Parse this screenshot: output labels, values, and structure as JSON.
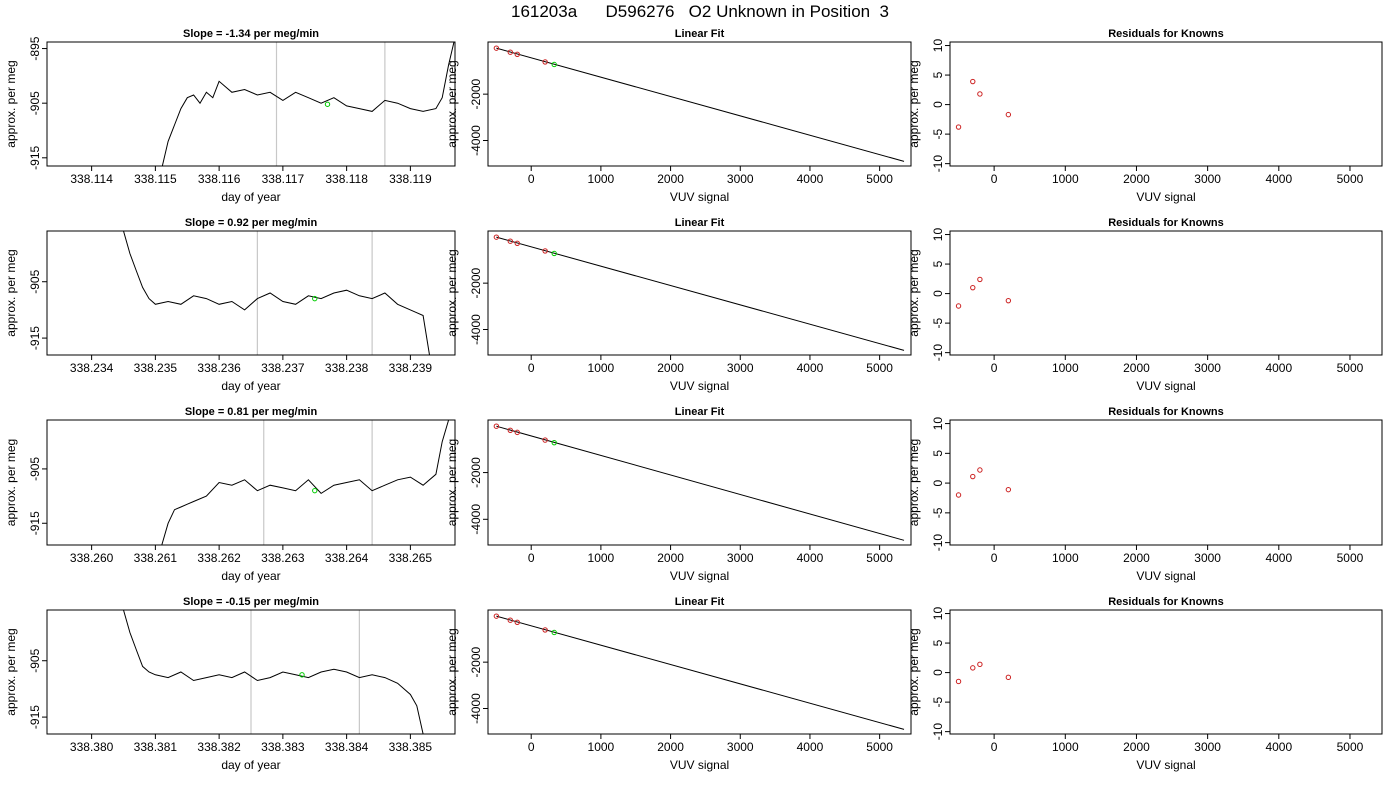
{
  "figure": {
    "title": "161203a      D596276   O2 Unknown in Position  3"
  },
  "chart_data": [
    {
      "type": "line",
      "title": "Slope =  -1.34  per meg/min",
      "xlabel": "day of year",
      "ylabel": "approx. per meg",
      "xticks": [
        "338.114",
        "338.115",
        "338.116",
        "338.117",
        "338.118",
        "338.119"
      ],
      "xlim": [
        338.1133,
        338.1197
      ],
      "yticks": [
        "-895",
        "-905",
        "-915"
      ],
      "ylim": [
        -916.5,
        -893.8
      ],
      "vlines": [
        338.1169,
        338.1186
      ],
      "highlight": {
        "x": 338.1177,
        "y": -905.2
      },
      "series": [
        {
          "x": [
            338.1151,
            338.1152,
            338.1153,
            338.1154,
            338.1155,
            338.1156,
            338.1157,
            338.1158,
            338.1159,
            338.116,
            338.1162,
            338.1164,
            338.1166,
            338.1168,
            338.117,
            338.1172,
            338.1174,
            338.1176,
            338.1178,
            338.118,
            338.1182,
            338.1184,
            338.1186,
            338.1188,
            338.119,
            338.1192,
            338.1194,
            338.1195,
            338.1196,
            338.1197
          ],
          "y": [
            -917,
            -912,
            -909,
            -906,
            -904,
            -903.5,
            -905,
            -903,
            -904,
            -901,
            -903,
            -902.5,
            -903.5,
            -903,
            -904.5,
            -903,
            -904,
            -905,
            -904,
            -905.5,
            -906,
            -906.5,
            -904.5,
            -905,
            -906,
            -906.5,
            -906,
            -904,
            -898,
            -893
          ]
        }
      ]
    },
    {
      "type": "scatter",
      "title": "Linear Fit",
      "xlabel": "VUV signal",
      "ylabel": "approx. per meg",
      "xticks": [
        "0",
        "1000",
        "2000",
        "3000",
        "4000",
        "5000"
      ],
      "xlim": [
        -620,
        5450
      ],
      "yticks": [
        "-2000",
        "-4000"
      ],
      "ylim": [
        -5100,
        250
      ],
      "fit_line": {
        "x": [
          -500,
          5350
        ],
        "y": [
          -15,
          -4900
        ]
      },
      "known_points": {
        "x": [
          -500,
          -300,
          -200,
          200
        ],
        "y": [
          -15,
          -190,
          -280,
          -610
        ]
      },
      "unknown_point": {
        "x": 330,
        "y": -720
      }
    },
    {
      "type": "scatter",
      "title": "Residuals for Knowns",
      "xlabel": "VUV signal",
      "ylabel": "approx. per meg",
      "xticks": [
        "0",
        "1000",
        "2000",
        "3000",
        "4000",
        "5000"
      ],
      "xlim": [
        -620,
        5450
      ],
      "yticks": [
        "10",
        "5",
        "0",
        "-5",
        "-10"
      ],
      "ylim": [
        -10.4,
        10.6
      ],
      "points": {
        "x": [
          -500,
          -300,
          -200,
          200
        ],
        "y": [
          -3.8,
          3.9,
          1.8,
          -1.7
        ]
      }
    },
    {
      "type": "line",
      "title": "Slope =  0.92  per meg/min",
      "xlabel": "day of year",
      "ylabel": "approx. per meg",
      "xticks": [
        "338.234",
        "338.235",
        "338.236",
        "338.237",
        "338.238",
        "338.239"
      ],
      "xlim": [
        338.2333,
        338.2397
      ],
      "yticks": [
        "-905",
        "-915"
      ],
      "ylim": [
        -918,
        -896
      ],
      "vlines": [
        338.2366,
        338.2384
      ],
      "highlight": {
        "x": 338.2375,
        "y": -908
      },
      "series": [
        {
          "x": [
            338.2345,
            338.2346,
            338.2347,
            338.2348,
            338.2349,
            338.235,
            338.2352,
            338.2354,
            338.2356,
            338.2358,
            338.236,
            338.2362,
            338.2364,
            338.2366,
            338.2368,
            338.237,
            338.2372,
            338.2374,
            338.2376,
            338.2378,
            338.238,
            338.2382,
            338.2384,
            338.2386,
            338.2388,
            338.239,
            338.2391,
            338.2392,
            338.2393
          ],
          "y": [
            -896,
            -900,
            -903,
            -906,
            -908,
            -909,
            -908.5,
            -909,
            -907.5,
            -908,
            -909,
            -908.5,
            -910,
            -908,
            -907,
            -908.5,
            -909,
            -907.5,
            -908,
            -907,
            -906.5,
            -907.5,
            -908,
            -907,
            -909,
            -910,
            -910.5,
            -911,
            -918
          ]
        }
      ]
    },
    {
      "type": "scatter",
      "title": "Linear Fit",
      "xlabel": "VUV signal",
      "ylabel": "approx. per meg",
      "xticks": [
        "0",
        "1000",
        "2000",
        "3000",
        "4000",
        "5000"
      ],
      "xlim": [
        -620,
        5450
      ],
      "yticks": [
        "-2000",
        "-4000"
      ],
      "ylim": [
        -5100,
        250
      ],
      "fit_line": {
        "x": [
          -500,
          5350
        ],
        "y": [
          -15,
          -4900
        ]
      },
      "known_points": {
        "x": [
          -500,
          -300,
          -200,
          200
        ],
        "y": [
          -15,
          -190,
          -280,
          -610
        ]
      },
      "unknown_point": {
        "x": 330,
        "y": -720
      }
    },
    {
      "type": "scatter",
      "title": "Residuals for Knowns",
      "xlabel": "VUV signal",
      "ylabel": "approx. per meg",
      "xticks": [
        "0",
        "1000",
        "2000",
        "3000",
        "4000",
        "5000"
      ],
      "xlim": [
        -620,
        5450
      ],
      "yticks": [
        "10",
        "5",
        "0",
        "-5",
        "-10"
      ],
      "ylim": [
        -10.4,
        10.6
      ],
      "points": {
        "x": [
          -500,
          -300,
          -200,
          200
        ],
        "y": [
          -2.1,
          1.0,
          2.4,
          -1.2
        ]
      }
    },
    {
      "type": "line",
      "title": "Slope =  0.81  per meg/min",
      "xlabel": "day of year",
      "ylabel": "approx. per meg",
      "xticks": [
        "338.260",
        "338.261",
        "338.262",
        "338.263",
        "338.264",
        "338.265"
      ],
      "xlim": [
        338.2593,
        338.2657
      ],
      "yticks": [
        "-905",
        "-915"
      ],
      "ylim": [
        -919,
        -896
      ],
      "vlines": [
        338.2627,
        338.2644
      ],
      "highlight": {
        "x": 338.2635,
        "y": -909
      },
      "series": [
        {
          "x": [
            338.2611,
            338.2612,
            338.2613,
            338.2614,
            338.2615,
            338.2616,
            338.2618,
            338.262,
            338.2622,
            338.2624,
            338.2626,
            338.2628,
            338.263,
            338.2632,
            338.2634,
            338.2636,
            338.2638,
            338.264,
            338.2642,
            338.2644,
            338.2646,
            338.2648,
            338.265,
            338.2652,
            338.2654,
            338.2655,
            338.2656
          ],
          "y": [
            -919,
            -915,
            -912.5,
            -912,
            -911.5,
            -911,
            -910,
            -907.5,
            -908,
            -907,
            -909,
            -908,
            -908.5,
            -909,
            -907,
            -909.5,
            -908,
            -907.5,
            -907,
            -909,
            -908,
            -907,
            -906.5,
            -908,
            -906,
            -900,
            -896
          ]
        }
      ]
    },
    {
      "type": "scatter",
      "title": "Linear Fit",
      "xlabel": "VUV signal",
      "ylabel": "approx. per meg",
      "xticks": [
        "0",
        "1000",
        "2000",
        "3000",
        "4000",
        "5000"
      ],
      "xlim": [
        -620,
        5450
      ],
      "yticks": [
        "-2000",
        "-4000"
      ],
      "ylim": [
        -5100,
        250
      ],
      "fit_line": {
        "x": [
          -500,
          5350
        ],
        "y": [
          -15,
          -4900
        ]
      },
      "known_points": {
        "x": [
          -500,
          -300,
          -200,
          200
        ],
        "y": [
          -15,
          -190,
          -280,
          -610
        ]
      },
      "unknown_point": {
        "x": 330,
        "y": -720
      }
    },
    {
      "type": "scatter",
      "title": "Residuals for Knowns",
      "xlabel": "VUV signal",
      "ylabel": "approx. per meg",
      "xticks": [
        "0",
        "1000",
        "2000",
        "3000",
        "4000",
        "5000"
      ],
      "xlim": [
        -620,
        5450
      ],
      "yticks": [
        "10",
        "5",
        "0",
        "-5",
        "-10"
      ],
      "ylim": [
        -10.4,
        10.6
      ],
      "points": {
        "x": [
          -500,
          -300,
          -200,
          200
        ],
        "y": [
          -2.0,
          1.1,
          2.2,
          -1.1
        ]
      }
    },
    {
      "type": "line",
      "title": "Slope =  -0.15  per meg/min",
      "xlabel": "day of year",
      "ylabel": "approx. per meg",
      "xticks": [
        "338.380",
        "338.381",
        "338.382",
        "338.383",
        "338.384",
        "338.385"
      ],
      "xlim": [
        338.3793,
        338.3857
      ],
      "yticks": [
        "-905",
        "-915"
      ],
      "ylim": [
        -918,
        -896
      ],
      "vlines": [
        338.3825,
        338.3842
      ],
      "highlight": {
        "x": 338.3833,
        "y": -907.5
      },
      "series": [
        {
          "x": [
            338.3805,
            338.3806,
            338.3807,
            338.3808,
            338.3809,
            338.381,
            338.3812,
            338.3814,
            338.3816,
            338.3818,
            338.382,
            338.3822,
            338.3824,
            338.3826,
            338.3828,
            338.383,
            338.3832,
            338.3834,
            338.3836,
            338.3838,
            338.384,
            338.3842,
            338.3844,
            338.3846,
            338.3848,
            338.385,
            338.3851,
            338.3852
          ],
          "y": [
            -896,
            -900,
            -903,
            -906,
            -907,
            -907.5,
            -908,
            -907,
            -908.5,
            -908,
            -907.5,
            -908,
            -907,
            -908.5,
            -908,
            -907,
            -907.5,
            -908,
            -907,
            -906.5,
            -907,
            -908,
            -907.5,
            -908,
            -909,
            -911,
            -913,
            -918
          ]
        }
      ]
    },
    {
      "type": "scatter",
      "title": "Linear Fit",
      "xlabel": "VUV signal",
      "ylabel": "approx. per meg",
      "xticks": [
        "0",
        "1000",
        "2000",
        "3000",
        "4000",
        "5000"
      ],
      "xlim": [
        -620,
        5450
      ],
      "yticks": [
        "-2000",
        "-4000"
      ],
      "ylim": [
        -5100,
        250
      ],
      "fit_line": {
        "x": [
          -500,
          5350
        ],
        "y": [
          -15,
          -4900
        ]
      },
      "known_points": {
        "x": [
          -500,
          -300,
          -200,
          200
        ],
        "y": [
          -15,
          -190,
          -280,
          -610
        ]
      },
      "unknown_point": {
        "x": 330,
        "y": -720
      }
    },
    {
      "type": "scatter",
      "title": "Residuals for Knowns",
      "xlabel": "VUV signal",
      "ylabel": "approx. per meg",
      "xticks": [
        "0",
        "1000",
        "2000",
        "3000",
        "4000",
        "5000"
      ],
      "xlim": [
        -620,
        5450
      ],
      "yticks": [
        "10",
        "5",
        "0",
        "-5",
        "-10"
      ],
      "ylim": [
        -10.4,
        10.6
      ],
      "points": {
        "x": [
          -500,
          -300,
          -200,
          200
        ],
        "y": [
          -1.5,
          0.8,
          1.4,
          -0.8
        ]
      }
    }
  ],
  "colors": {
    "line": "#000000",
    "highlight": "#00cc00",
    "known_marker": "#cc2222",
    "vline": "#c8c8c8"
  }
}
